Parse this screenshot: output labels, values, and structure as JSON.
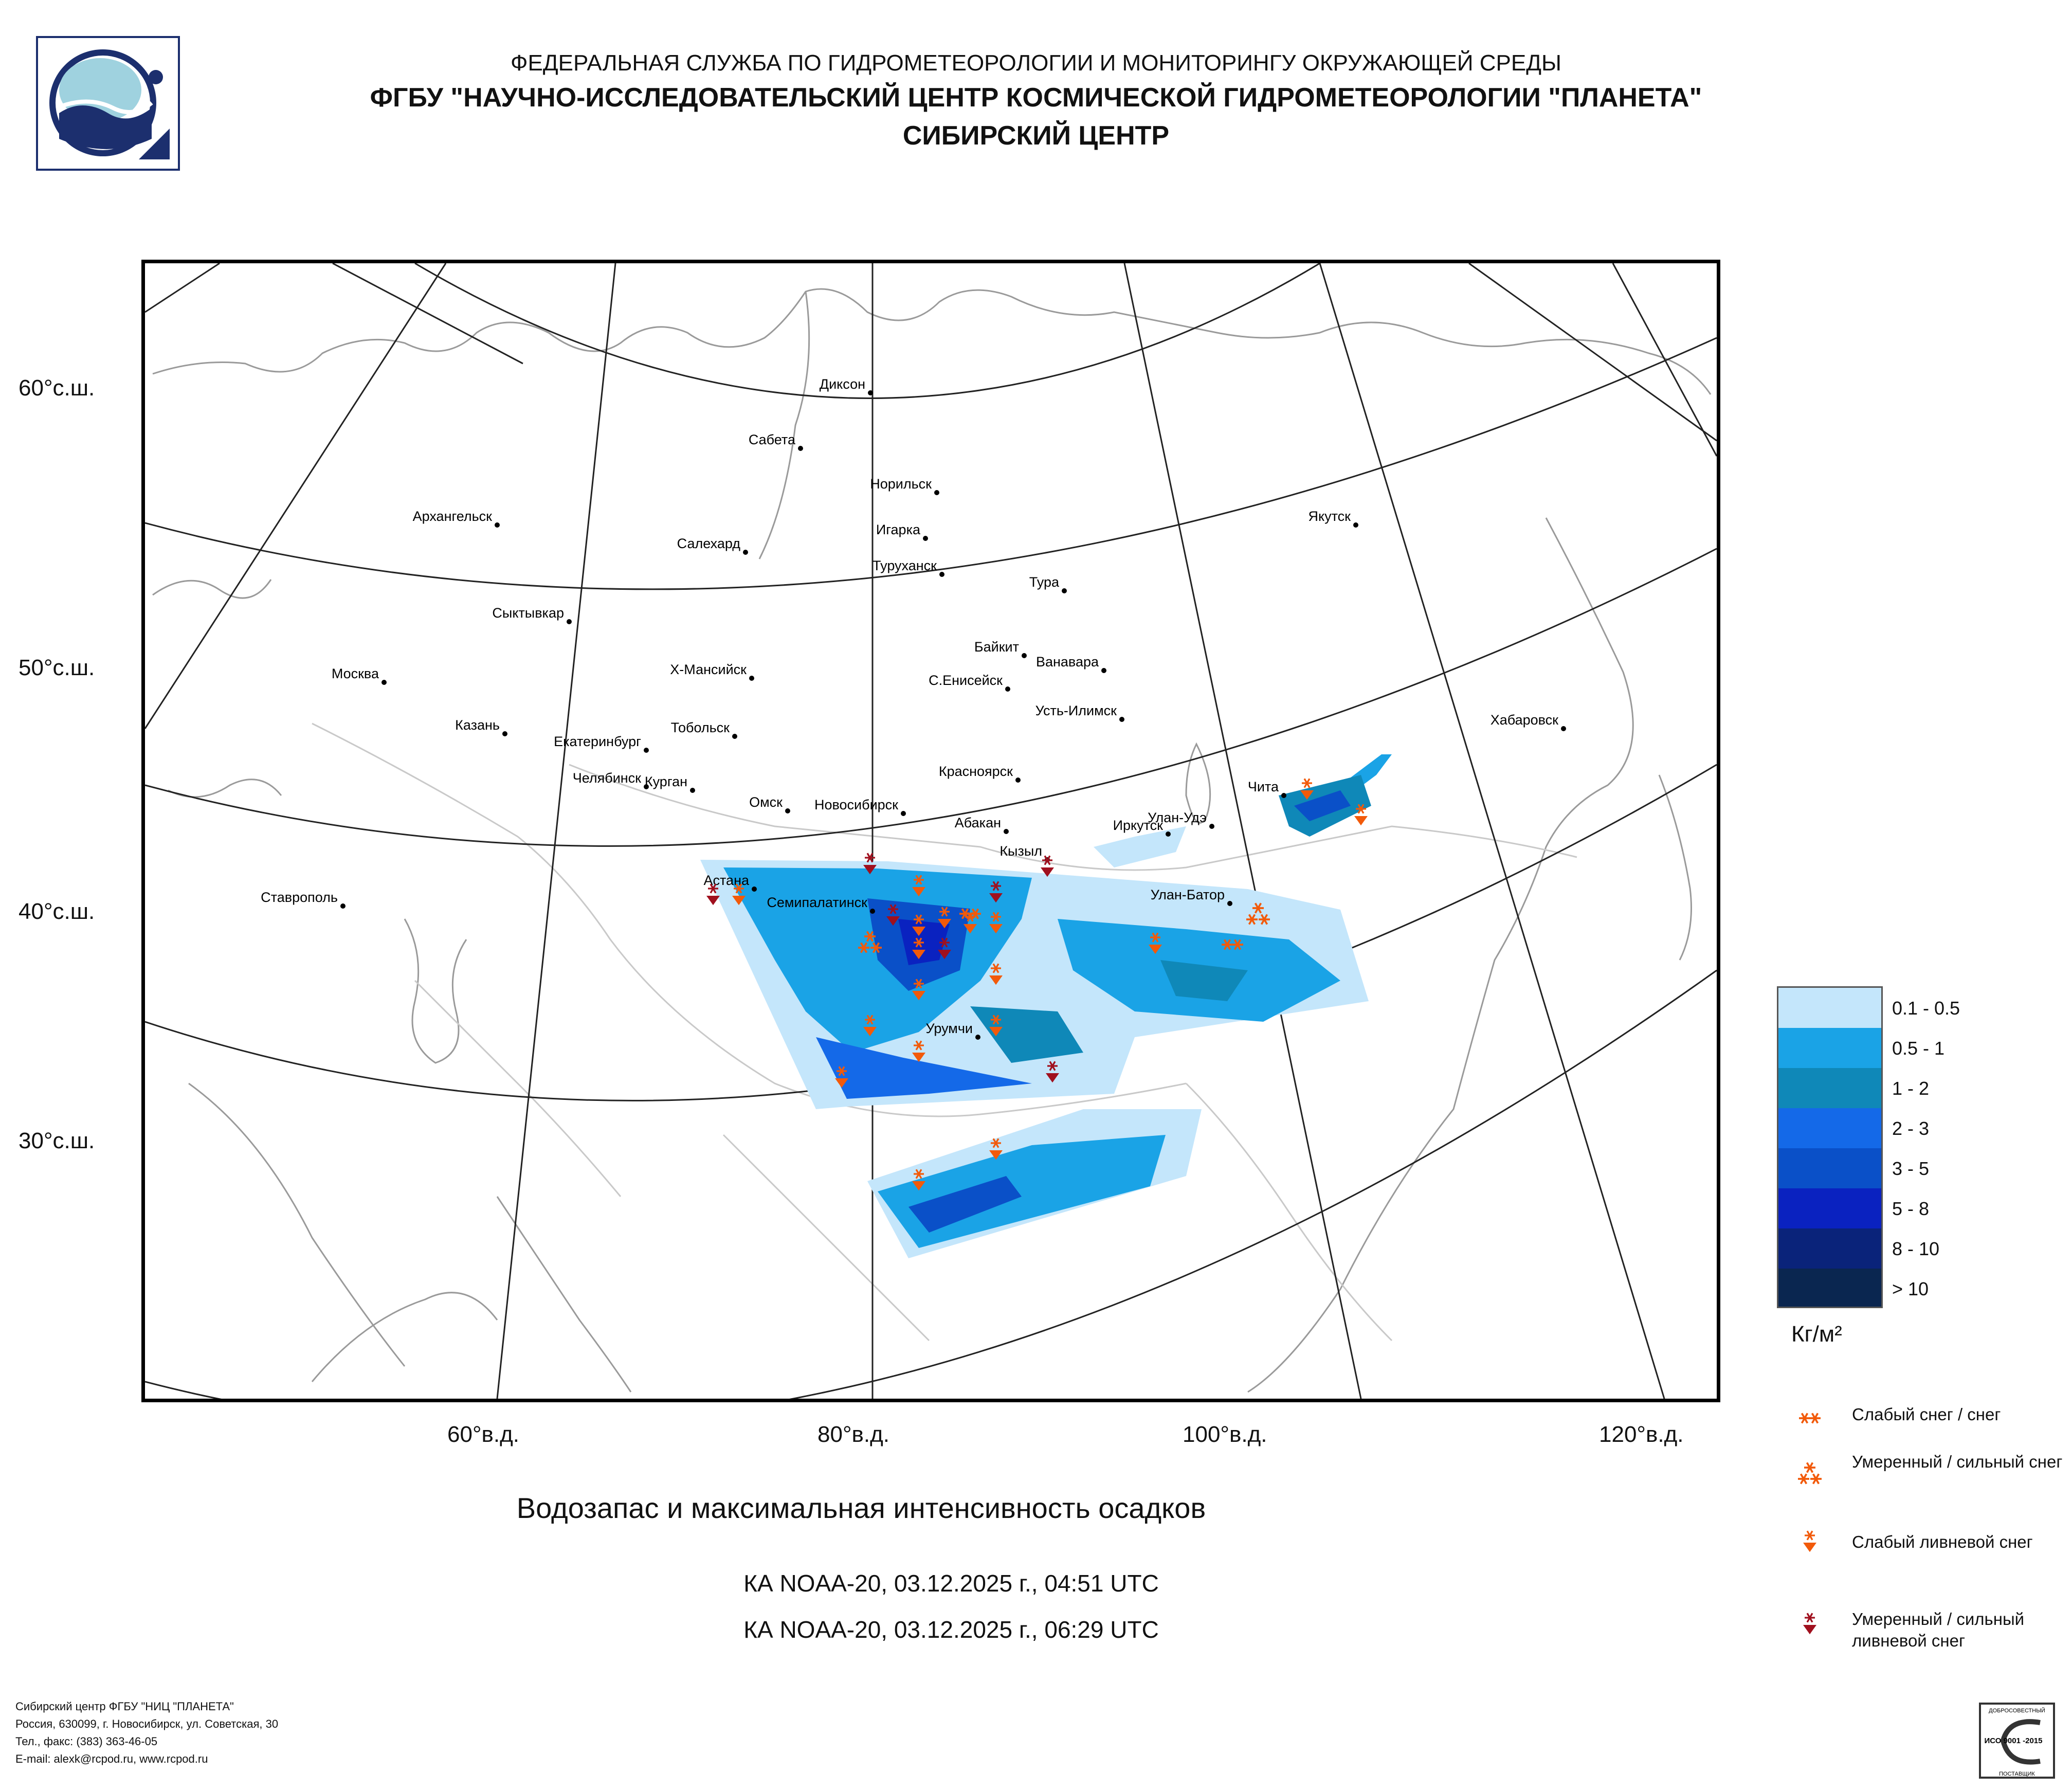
{
  "header": {
    "line1": "ФЕДЕРАЛЬНАЯ СЛУЖБА ПО ГИДРОМЕТЕОРОЛОГИИ И МОНИТОРИНГУ ОКРУЖАЮЩЕЙ СРЕДЫ",
    "line2": "ФГБУ \"НАУЧНО-ИССЛЕДОВАТЕЛЬСКИЙ ЦЕНТР КОСМИЧЕСКОЙ ГИДРОМЕТЕОРОЛОГИИ \"ПЛАНЕТА\"",
    "line3": "СИБИРСКИЙ ЦЕНТР"
  },
  "map": {
    "lat_labels": [
      "60°с.ш.",
      "50°с.ш.",
      "40°с.ш.",
      "30°с.ш."
    ],
    "lon_labels": [
      "60°в.д.",
      "80°в.д.",
      "100°в.д.",
      "120°в.д."
    ],
    "cities": [
      "Диксон",
      "Сабета",
      "Норильск",
      "Архангельск",
      "Игарка",
      "Салехард",
      "Туруханск",
      "Тура",
      "Якутск",
      "Сыктывкар",
      "Байкит",
      "Ванавара",
      "Москва",
      "Х-Мансийск",
      "С.Енисейск",
      "Усть-Илимск",
      "Хабаровск",
      "Казань",
      "Тобольск",
      "Екатеринбург",
      "Красноярск",
      "Челябинск",
      "Курган",
      "Омск",
      "Новосибирск",
      "Абакан",
      "Чита",
      "Улан-Удэ",
      "Иркутск",
      "Кызыл",
      "Астана",
      "Семипалатинск",
      "Улан-Батор",
      "Ставрополь",
      "Урумчи"
    ]
  },
  "legend": {
    "classes": [
      {
        "label": "0.1 - 0.5",
        "color": "#c4e6fb"
      },
      {
        "label": "0.5 - 1",
        "color": "#1aa3e6"
      },
      {
        "label": "1 - 2",
        "color": "#0f88b8"
      },
      {
        "label": "2 - 3",
        "color": "#1469e8"
      },
      {
        "label": "3 - 5",
        "color": "#0a50c8"
      },
      {
        "label": "5 - 8",
        "color": "#0a22c0"
      },
      {
        "label": "8 - 10",
        "color": "#0a237a"
      },
      {
        "label": "> 10",
        "color": "#0a2650"
      }
    ],
    "unit": "Кг/м²",
    "symbols": [
      {
        "label": "Слабый снег / снег"
      },
      {
        "label": "Умеренный / сильный снег"
      },
      {
        "label": "Слабый ливневой снег"
      },
      {
        "label": "Умеренный / сильный ливневой снег"
      }
    ]
  },
  "title": "Водозапас и максимальная интенсивность осадков",
  "satellites": [
    "КА NOAA-20, 03.12.2025 г., 04:51 UTC",
    "КА NOAA-20, 03.12.2025 г., 06:29 UTC"
  ],
  "footer": [
    "Сибирский центр ФГБУ \"НИЦ \"ПЛАНЕТА\"",
    "Россия, 630099, г. Новосибирск, ул. Советская, 30",
    "Тел., факс: (383) 363-46-05",
    "E-mail: alexk@rcpod.ru, www.rcpod.ru"
  ],
  "iso": {
    "top": "ДОБРОСОВЕСТНЫЙ",
    "mid": "ИСО 9001 -2015",
    "bottom": "ПОСТАВЩИК"
  },
  "colors": {
    "snow_light": "#f25a0a",
    "snow_heavy": "#a0101e"
  }
}
